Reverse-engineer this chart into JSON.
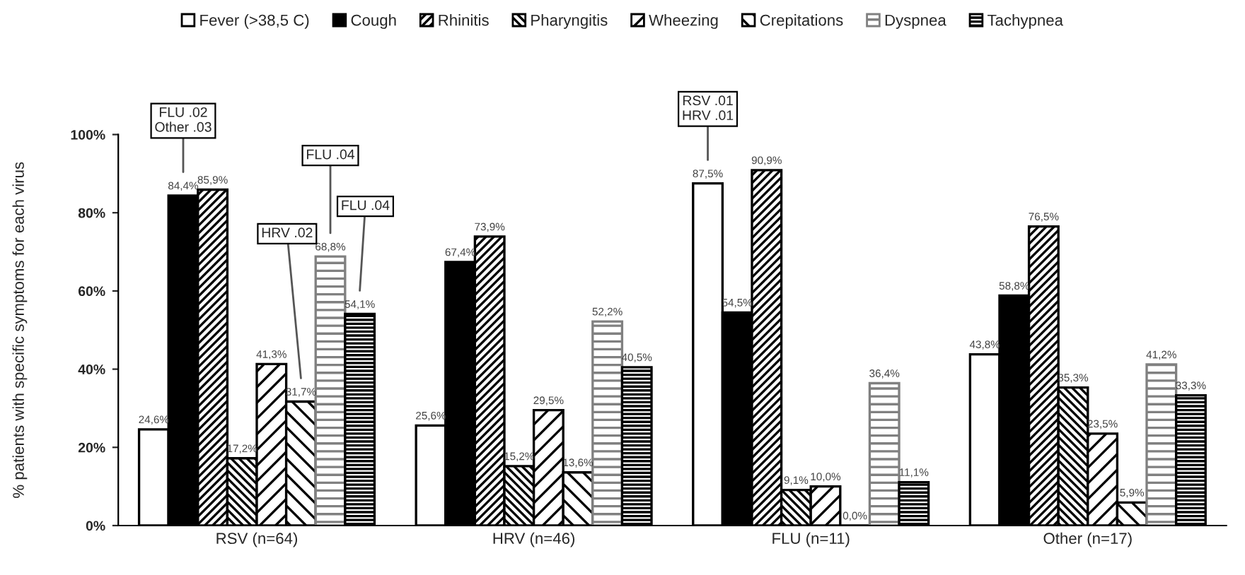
{
  "chart_data": {
    "type": "bar",
    "ylabel": "% patients with specific symptoms for each virus",
    "categories": [
      "RSV (n=64)",
      "HRV (n=46)",
      "FLU (n=11)",
      "Other (n=17)"
    ],
    "series": [
      {
        "name": "Fever (>38,5 C)",
        "color": "#ffffff",
        "values": [
          24.6,
          25.6,
          87.5,
          43.8
        ],
        "value_labels": [
          "24,6%",
          "25,6%",
          "87,5%",
          "43,8%"
        ]
      },
      {
        "name": "Cough",
        "color": "#000000",
        "values": [
          84.4,
          67.4,
          54.5,
          58.8
        ],
        "value_labels": [
          "84,4%",
          "67,4%",
          "54,5%",
          "58,8%"
        ]
      },
      {
        "name": "Rhinitis",
        "color": "#000000",
        "values": [
          85.9,
          73.9,
          90.9,
          76.5
        ],
        "value_labels": [
          "85,9%",
          "73,9%",
          "90,9%",
          "76,5%"
        ]
      },
      {
        "name": "Pharyngitis",
        "color": "#000000",
        "values": [
          17.2,
          15.2,
          9.1,
          35.3
        ],
        "value_labels": [
          "17,2%",
          "15,2%",
          "9,1%",
          "35,3%"
        ]
      },
      {
        "name": "Wheezing",
        "color": "#000000",
        "values": [
          41.3,
          29.5,
          10.0,
          23.5
        ],
        "value_labels": [
          "41,3%",
          "29,5%",
          "10,0%",
          "23,5%"
        ]
      },
      {
        "name": "Crepitations",
        "color": "#000000",
        "values": [
          31.7,
          13.6,
          0.0,
          5.9
        ],
        "value_labels": [
          "31,7%",
          "13,6%",
          "0,0%",
          "5,9%"
        ]
      },
      {
        "name": "Dyspnea",
        "color": "#808080",
        "values": [
          68.8,
          52.2,
          36.4,
          41.2
        ],
        "value_labels": [
          "68,8%",
          "52,2%",
          "36,4%",
          "41,2%"
        ]
      },
      {
        "name": "Tachypnea",
        "color": "#000000",
        "values": [
          54.1,
          40.5,
          11.1,
          33.3
        ],
        "value_labels": [
          "54,1%",
          "40,5%",
          "11,1%",
          "33,3%"
        ]
      }
    ],
    "annotations": [
      "FLU .02\nOther .03",
      "HRV .02",
      "FLU .04",
      "FLU .04",
      "RSV .01\nHRV .01"
    ],
    "ylim": [
      0,
      100
    ],
    "yticks": [
      {
        "value": 0,
        "label": "0%"
      },
      {
        "value": 20,
        "label": "20%"
      },
      {
        "value": 40,
        "label": "40%"
      },
      {
        "value": 60,
        "label": "60%"
      },
      {
        "value": 80,
        "label": "80%"
      },
      {
        "value": 100,
        "label": "100%"
      }
    ],
    "grid": false,
    "legend": "top"
  }
}
